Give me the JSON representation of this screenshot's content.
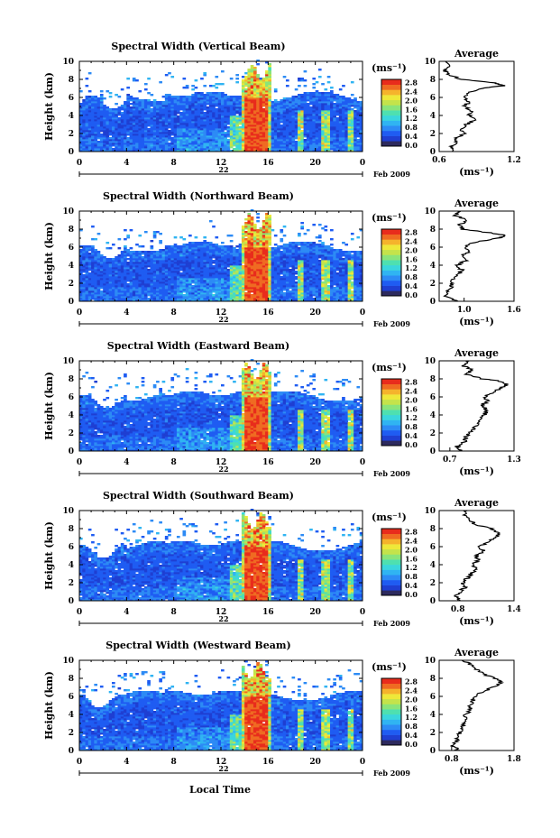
{
  "colors": {
    "scale": [
      "#2d2a5e",
      "#1f3fd2",
      "#1f5cf2",
      "#2d8bf5",
      "#30b4f2",
      "#3ad6dd",
      "#4ee0b0",
      "#8ae47a",
      "#c4e34b",
      "#eee839",
      "#f5b32c",
      "#ef6b22",
      "#e82c1c"
    ],
    "ink": "#000000"
  },
  "colorbar": {
    "unit_label": "(ms⁻¹)",
    "tick_labels": [
      "0.0",
      "0.4",
      "0.8",
      "1.2",
      "1.6",
      "2.0",
      "2.4",
      "2.8"
    ],
    "range": [
      0.0,
      2.8
    ]
  },
  "shared": {
    "date_label": "Feb 2009",
    "day_label": "22",
    "xlabel": "Local Time",
    "ylabel": "Height (km)",
    "x_ticks": [
      "0",
      "4",
      "8",
      "12",
      "16",
      "20",
      "0"
    ],
    "y_ticks": [
      "0",
      "2",
      "4",
      "6",
      "8",
      "10"
    ],
    "avg_title": "Average",
    "avg_xlabel": "(ms⁻¹)"
  },
  "chart_data": [
    {
      "type": "heatmap",
      "title": "Spectral Width (Vertical Beam)",
      "xlim": [
        0,
        24
      ],
      "ylim": [
        0,
        10
      ],
      "avg": {
        "type": "line",
        "xlim": [
          0.6,
          1.2
        ],
        "x_ticks": [
          "0.6",
          "1.2"
        ],
        "profile": [
          [
            0,
            0.72
          ],
          [
            0.5,
            0.7
          ],
          [
            1,
            0.73
          ],
          [
            1.5,
            0.74
          ],
          [
            2,
            0.8
          ],
          [
            2.5,
            0.78
          ],
          [
            3,
            0.82
          ],
          [
            3.5,
            0.88
          ],
          [
            4,
            0.84
          ],
          [
            4.5,
            0.86
          ],
          [
            5,
            0.8
          ],
          [
            5.5,
            0.84
          ],
          [
            6,
            0.79
          ],
          [
            6.5,
            0.83
          ],
          [
            7,
            0.95
          ],
          [
            7.3,
            1.12
          ],
          [
            7.6,
            1.05
          ],
          [
            8,
            0.78
          ],
          [
            8.5,
            0.68
          ],
          [
            9,
            0.64
          ],
          [
            9.5,
            0.7
          ],
          [
            10,
            0.66
          ]
        ]
      }
    },
    {
      "type": "heatmap",
      "title": "Spectral Width (Northward Beam)",
      "xlim": [
        0,
        24
      ],
      "ylim": [
        0,
        10
      ],
      "avg": {
        "type": "line",
        "xlim": [
          0.7,
          1.6
        ],
        "x_ticks": [
          "1.0",
          "1.6"
        ],
        "profile": [
          [
            0,
            0.92
          ],
          [
            0.5,
            0.78
          ],
          [
            1,
            0.8
          ],
          [
            1.5,
            0.85
          ],
          [
            2,
            0.84
          ],
          [
            2.5,
            0.88
          ],
          [
            3,
            0.94
          ],
          [
            3.5,
            0.97
          ],
          [
            4,
            0.92
          ],
          [
            4.5,
            1.02
          ],
          [
            5,
            0.98
          ],
          [
            5.5,
            1.05
          ],
          [
            6,
            1.0
          ],
          [
            6.5,
            1.1
          ],
          [
            7,
            1.4
          ],
          [
            7.3,
            1.52
          ],
          [
            7.6,
            1.3
          ],
          [
            8,
            0.98
          ],
          [
            8.5,
            0.95
          ],
          [
            9,
            1.05
          ],
          [
            9.5,
            0.9
          ],
          [
            10,
            0.92
          ]
        ]
      }
    },
    {
      "type": "heatmap",
      "title": "Spectral Width (Eastward Beam)",
      "xlim": [
        0,
        24
      ],
      "ylim": [
        0,
        10
      ],
      "avg": {
        "type": "line",
        "xlim": [
          0.6,
          1.3
        ],
        "x_ticks": [
          "0.7",
          "1.3"
        ],
        "profile": [
          [
            0,
            0.8
          ],
          [
            0.5,
            0.76
          ],
          [
            1,
            0.84
          ],
          [
            1.5,
            0.85
          ],
          [
            2,
            0.88
          ],
          [
            2.5,
            0.92
          ],
          [
            3,
            0.95
          ],
          [
            3.5,
            1.0
          ],
          [
            4,
            1.02
          ],
          [
            4.5,
            1.05
          ],
          [
            5,
            1.0
          ],
          [
            5.5,
            1.05
          ],
          [
            6,
            1.02
          ],
          [
            6.5,
            1.1
          ],
          [
            7,
            1.18
          ],
          [
            7.4,
            1.24
          ],
          [
            7.8,
            1.15
          ],
          [
            8,
            1.0
          ],
          [
            8.5,
            0.86
          ],
          [
            9,
            0.9
          ],
          [
            9.5,
            0.82
          ],
          [
            10,
            0.88
          ]
        ]
      }
    },
    {
      "type": "heatmap",
      "title": "Spectral Width (Southward Beam)",
      "xlim": [
        0,
        24
      ],
      "ylim": [
        0,
        10
      ],
      "avg": {
        "type": "line",
        "xlim": [
          0.6,
          1.4
        ],
        "x_ticks": [
          "0.8",
          "1.4"
        ],
        "profile": [
          [
            0,
            0.84
          ],
          [
            0.5,
            0.78
          ],
          [
            1,
            0.82
          ],
          [
            1.5,
            0.88
          ],
          [
            2,
            0.85
          ],
          [
            2.5,
            0.9
          ],
          [
            3,
            0.94
          ],
          [
            3.5,
            1.0
          ],
          [
            4,
            0.95
          ],
          [
            4.5,
            1.02
          ],
          [
            5,
            1.0
          ],
          [
            5.5,
            1.08
          ],
          [
            6,
            1.02
          ],
          [
            6.5,
            1.12
          ],
          [
            7,
            1.2
          ],
          [
            7.5,
            1.25
          ],
          [
            8,
            1.15
          ],
          [
            8.5,
            0.98
          ],
          [
            9,
            0.92
          ],
          [
            9.5,
            0.86
          ],
          [
            10,
            0.9
          ]
        ]
      }
    },
    {
      "type": "heatmap",
      "title": "Spectral Width (Westward Beam)",
      "xlim": [
        0,
        24
      ],
      "ylim": [
        0,
        10
      ],
      "avg": {
        "type": "line",
        "xlim": [
          0.6,
          1.8
        ],
        "x_ticks": [
          "0.8",
          "1.8"
        ],
        "profile": [
          [
            0,
            0.92
          ],
          [
            0.5,
            0.82
          ],
          [
            1,
            0.88
          ],
          [
            1.5,
            0.9
          ],
          [
            2,
            0.94
          ],
          [
            2.5,
            0.98
          ],
          [
            3,
            1.0
          ],
          [
            3.5,
            1.05
          ],
          [
            4,
            1.02
          ],
          [
            4.5,
            1.1
          ],
          [
            5,
            1.08
          ],
          [
            5.5,
            1.15
          ],
          [
            6,
            1.18
          ],
          [
            6.5,
            1.3
          ],
          [
            7,
            1.45
          ],
          [
            7.5,
            1.6
          ],
          [
            8,
            1.5
          ],
          [
            8.5,
            1.3
          ],
          [
            9,
            1.2
          ],
          [
            9.5,
            1.1
          ],
          [
            10,
            1.0
          ]
        ]
      }
    }
  ]
}
